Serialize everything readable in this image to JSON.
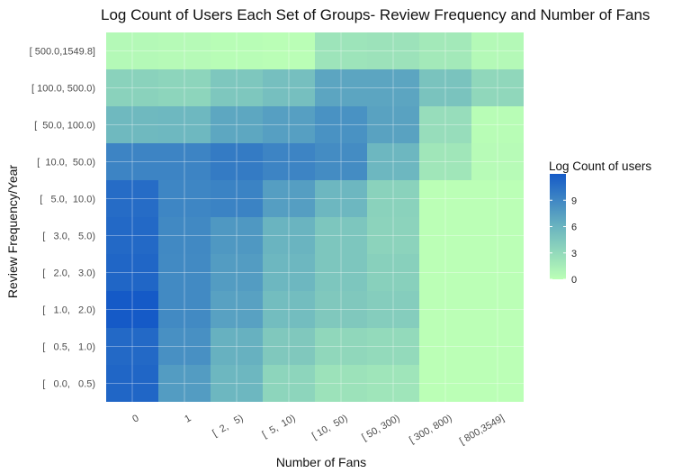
{
  "chart_data": {
    "type": "heatmap",
    "title": "Log Count of Users Each Set of Groups- Review Frequency and Number of Fans",
    "xlabel": "Number of Fans",
    "ylabel": "Review Frequency/Year",
    "x_categories": [
      "0",
      "1",
      "[  2,   5)",
      "[  5,  10)",
      "[ 10,  50)",
      "[ 50, 300)",
      "[ 300, 800)",
      "[ 800,3549]"
    ],
    "y_categories": [
      "[   0.0,   0.5)",
      "[   0.5,   1.0)",
      "[   1.0,   2.0)",
      "[   2.0,   3.0)",
      "[   3.0,   5.0)",
      "[   5.0,  10.0)",
      "[  10.0,  50.0)",
      "[  50.0, 100.0)",
      "[ 100.0, 500.0)",
      "[ 500.0,1549.8]"
    ],
    "values": [
      [
        11.2,
        7.6,
        5.8,
        3.4,
        2.3,
        2.1,
        0,
        0
      ],
      [
        11.0,
        8.4,
        6.2,
        4.4,
        3.2,
        3.0,
        0,
        0
      ],
      [
        12.0,
        8.8,
        7.3,
        5.3,
        4.4,
        4.0,
        0,
        0
      ],
      [
        11.2,
        8.8,
        7.6,
        5.8,
        4.6,
        3.8,
        0,
        0
      ],
      [
        11.0,
        8.9,
        7.9,
        6.0,
        4.6,
        3.5,
        0,
        0
      ],
      [
        10.8,
        9.1,
        9.3,
        7.5,
        5.8,
        3.6,
        0,
        0
      ],
      [
        9.2,
        9.2,
        9.8,
        9.2,
        8.7,
        5.8,
        2.0,
        0.3
      ],
      [
        5.6,
        5.7,
        6.9,
        7.4,
        8.3,
        7.2,
        2.7,
        0.2
      ],
      [
        3.6,
        3.4,
        4.5,
        5.1,
        7.0,
        7.0,
        4.8,
        3.2
      ],
      [
        0.5,
        0.4,
        0.2,
        0.1,
        2.2,
        2.3,
        1.8,
        0.5
      ]
    ],
    "legend": {
      "title": "Log Count of users",
      "ticks": [
        0,
        3,
        6,
        9
      ],
      "range": [
        0,
        12
      ],
      "low_color": "#bbffb6",
      "mid_color": "#6ab4c0",
      "high_color": "#155ac7",
      "position": "right"
    },
    "grid": true
  }
}
